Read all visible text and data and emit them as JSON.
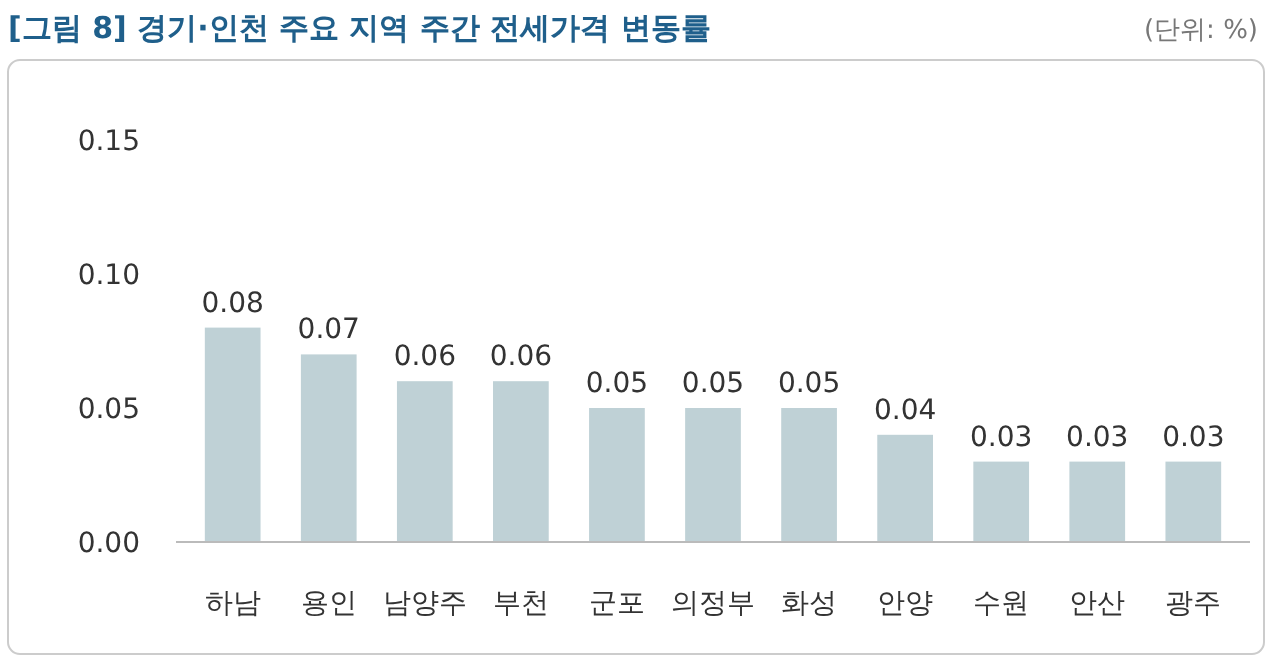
{
  "chart_data": {
    "type": "bar",
    "title": "[그림 8] 경기·인천 주요 지역 주간 전세가격 변동률",
    "annotations": [
      "(단위: %)"
    ],
    "categories": [
      "하남",
      "용인",
      "남양주",
      "부천",
      "군포",
      "의정부",
      "화성",
      "안양",
      "수원",
      "안산",
      "광주"
    ],
    "values": [
      0.08,
      0.07,
      0.06,
      0.06,
      0.05,
      0.05,
      0.05,
      0.04,
      0.03,
      0.03,
      0.03
    ],
    "color": "#bfd1d6",
    "ylim": [
      0,
      0.15
    ],
    "yticks": [
      {
        "value": 0,
        "label": "0.00"
      },
      {
        "value": 0.05,
        "label": "0.05"
      },
      {
        "value": 0.1,
        "label": "0.10"
      },
      {
        "value": 0.15,
        "label": "0.15"
      }
    ],
    "data_labels": true
  }
}
